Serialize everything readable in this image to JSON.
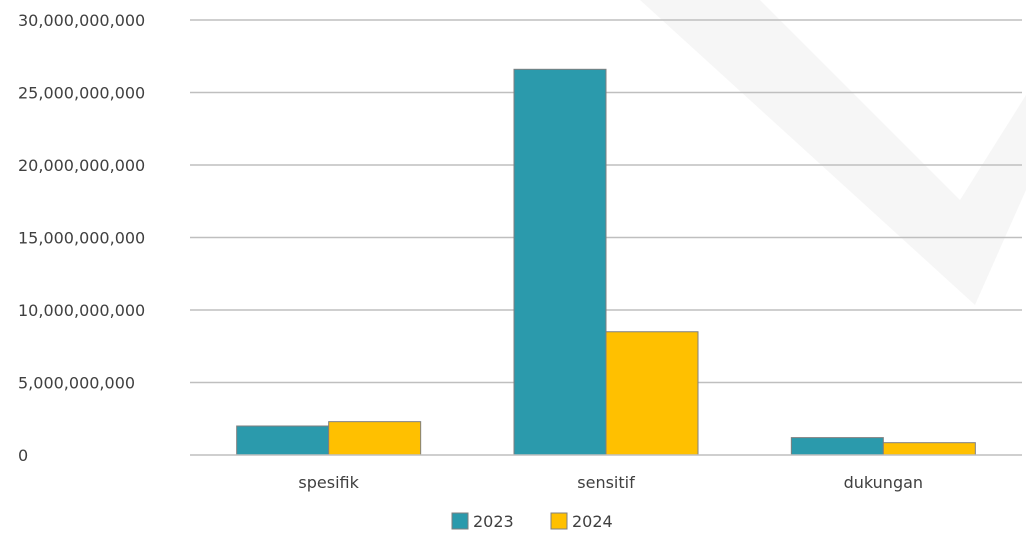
{
  "chart_data": {
    "type": "bar",
    "categories": [
      "spesifik",
      "sensitif",
      "dukungan"
    ],
    "series": [
      {
        "name": "2023",
        "color": "#2b9aac",
        "values": [
          2000000000,
          26600000000,
          1200000000
        ]
      },
      {
        "name": "2024",
        "color": "#ffc000",
        "values": [
          2300000000,
          8500000000,
          850000000
        ]
      }
    ],
    "yticks": [
      0,
      5000000000,
      10000000000,
      15000000000,
      20000000000,
      25000000000,
      30000000000
    ],
    "ytick_labels": [
      "0",
      "5,000,000,000",
      "10,000,000,000",
      "15,000,000,000",
      "20,000,000,000",
      "25,000,000,000",
      "30,000,000,000"
    ],
    "ylim": [
      0,
      30000000000
    ],
    "grid": true,
    "legend_position": "bottom"
  }
}
